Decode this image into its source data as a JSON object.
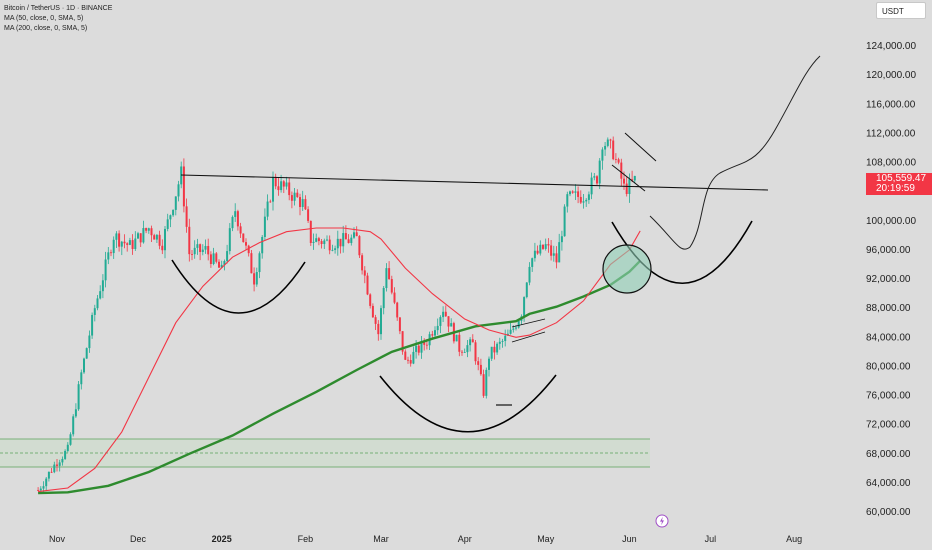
{
  "legend": {
    "title": "Bitcoin / TetherUS · 1D · BINANCE",
    "ma50": "MA (50, close, 0, SMA, 5)",
    "ma200": "MA (200, close, 0, SMA, 5)"
  },
  "currency_button": "USDT",
  "current_price": "105,559.47",
  "countdown": "20:19:59",
  "chart_data": {
    "type": "candlestick",
    "y_axis": {
      "labels": [
        "124,000.00",
        "120,000.00",
        "116,000.00",
        "112,000.00",
        "108,000.00",
        "100,000.00",
        "96,000.00",
        "92,000.00",
        "88,000.00",
        "84,000.00",
        "80,000.00",
        "76,000.00",
        "72,000.00",
        "68,000.00",
        "64,000.00",
        "60,000.00"
      ],
      "values": [
        124000,
        120000,
        116000,
        112000,
        108000,
        100000,
        96000,
        92000,
        88000,
        84000,
        80000,
        76000,
        72000,
        68000,
        64000,
        60000
      ],
      "range": [
        58500,
        128500
      ]
    },
    "x_axis": {
      "labels": [
        "Nov",
        "Dec",
        "2025",
        "Feb",
        "Mar",
        "Apr",
        "May",
        "Jun",
        "Jul",
        "Aug"
      ],
      "bold": [
        false,
        false,
        true,
        false,
        false,
        false,
        false,
        false,
        false,
        false
      ]
    },
    "series": [
      {
        "name": "MA (50, close, 0, SMA, 5)",
        "color": "#f23645"
      },
      {
        "name": "MA (200, close, 0, SMA, 5)",
        "color": "#2e8b2e"
      }
    ],
    "ma50_close": [
      [
        "2024-10-25",
        62800
      ],
      [
        "2024-11-05",
        63300
      ],
      [
        "2024-11-15",
        66000
      ],
      [
        "2024-11-25",
        71000
      ],
      [
        "2024-12-05",
        78500
      ],
      [
        "2024-12-15",
        86000
      ],
      [
        "2024-12-25",
        91000
      ],
      [
        "2025-01-05",
        95000
      ],
      [
        "2025-01-15",
        97000
      ],
      [
        "2025-01-25",
        98500
      ],
      [
        "2025-02-05",
        99000
      ],
      [
        "2025-02-15",
        99000
      ],
      [
        "2025-02-25",
        98500
      ],
      [
        "2025-03-01",
        97500
      ],
      [
        "2025-03-10",
        93500
      ],
      [
        "2025-03-20",
        90000
      ],
      [
        "2025-04-01",
        86500
      ],
      [
        "2025-04-10",
        85000
      ],
      [
        "2025-04-20",
        84000
      ],
      [
        "2025-04-25",
        84300
      ],
      [
        "2025-05-05",
        86000
      ],
      [
        "2025-05-15",
        89000
      ],
      [
        "2025-05-25",
        94000
      ],
      [
        "2025-06-01",
        96000
      ],
      [
        "2025-06-05",
        98600
      ]
    ],
    "ma200_close": [
      [
        "2024-10-25",
        62600
      ],
      [
        "2024-11-05",
        62700
      ],
      [
        "2024-11-20",
        63600
      ],
      [
        "2024-12-05",
        65500
      ],
      [
        "2024-12-20",
        68000
      ],
      [
        "2025-01-05",
        70500
      ],
      [
        "2025-01-20",
        73500
      ],
      [
        "2025-02-05",
        76500
      ],
      [
        "2025-02-20",
        79500
      ],
      [
        "2025-03-05",
        82000
      ],
      [
        "2025-03-20",
        83800
      ],
      [
        "2025-04-05",
        85500
      ],
      [
        "2025-04-20",
        86200
      ],
      [
        "2025-04-25",
        87200
      ],
      [
        "2025-05-05",
        88200
      ],
      [
        "2025-05-15",
        89600
      ],
      [
        "2025-05-25",
        91200
      ],
      [
        "2025-06-01",
        93000
      ],
      [
        "2025-06-05",
        94500
      ]
    ],
    "price_path": [
      [
        "2024-10-25",
        63000
      ],
      [
        "2024-11-01",
        67000
      ],
      [
        "2024-11-05",
        68500
      ],
      [
        "2024-11-10",
        79000
      ],
      [
        "2024-11-15",
        88000
      ],
      [
        "2024-11-22",
        98000
      ],
      [
        "2024-11-28",
        96500
      ],
      [
        "2024-12-05",
        99000
      ],
      [
        "2024-12-10",
        97000
      ],
      [
        "2024-12-17",
        106500
      ],
      [
        "2024-12-20",
        95500
      ],
      [
        "2024-12-26",
        96000
      ],
      [
        "2025-01-01",
        93000
      ],
      [
        "2025-01-06",
        101500
      ],
      [
        "2025-01-13",
        92000
      ],
      [
        "2025-01-20",
        105500
      ],
      [
        "2025-01-24",
        104500
      ],
      [
        "2025-01-31",
        102400
      ],
      [
        "2025-02-03",
        97500
      ],
      [
        "2025-02-10",
        97000
      ],
      [
        "2025-02-20",
        97500
      ],
      [
        "2025-02-25",
        89000
      ],
      [
        "2025-02-28",
        84500
      ],
      [
        "2025-03-03",
        94000
      ],
      [
        "2025-03-10",
        80500
      ],
      [
        "2025-03-18",
        83500
      ],
      [
        "2025-03-24",
        88000
      ],
      [
        "2025-03-30",
        82500
      ],
      [
        "2025-04-04",
        83000
      ],
      [
        "2025-04-08",
        76500
      ],
      [
        "2025-04-10",
        81500
      ],
      [
        "2025-04-18",
        84500
      ],
      [
        "2025-04-22",
        87500
      ],
      [
        "2025-04-25",
        94500
      ],
      [
        "2025-05-01",
        96500
      ],
      [
        "2025-05-05",
        94500
      ],
      [
        "2025-05-09",
        103000
      ],
      [
        "2025-05-15",
        103500
      ],
      [
        "2025-05-20",
        106000
      ],
      [
        "2025-05-22",
        111000
      ],
      [
        "2025-05-26",
        109500
      ],
      [
        "2025-05-30",
        104500
      ],
      [
        "2025-06-01",
        104700
      ],
      [
        "2025-06-03",
        105559
      ]
    ]
  }
}
